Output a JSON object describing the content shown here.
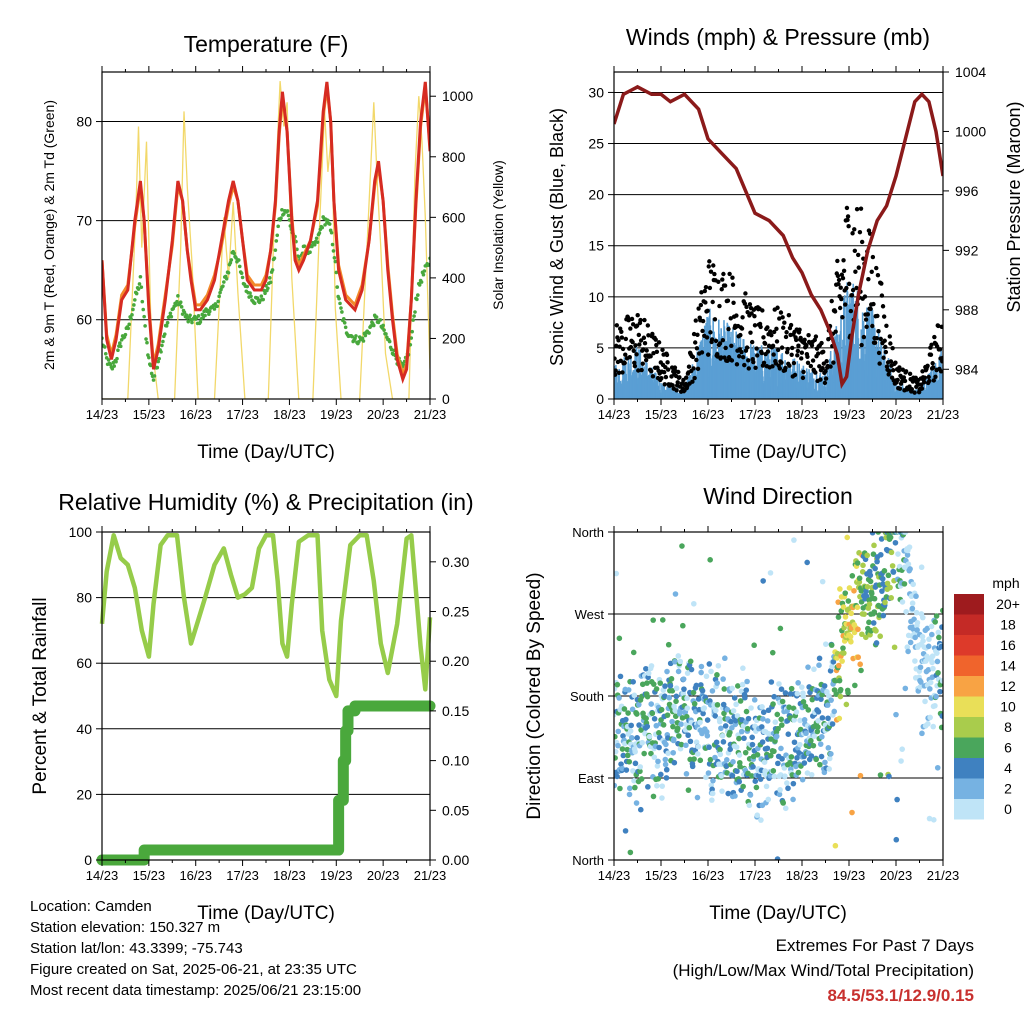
{
  "chart_data": [
    {
      "type": "line",
      "title": "Temperature (F)",
      "xlabel": "Time (Day/UTC)",
      "ylabel": "2m & 9m T (Red, Orange) & 2m Td (Green)",
      "y2label": "Solar Insolation (Yellow)",
      "x_ticks": [
        "14/23",
        "15/23",
        "16/23",
        "17/23",
        "18/23",
        "19/23",
        "20/23",
        "21/23"
      ],
      "xlim": [
        0,
        7
      ],
      "ylim": [
        52,
        85
      ],
      "y_ticks": [
        60,
        70,
        80
      ],
      "y2lim": [
        0,
        1080
      ],
      "y2_ticks": [
        0,
        200,
        400,
        600,
        800,
        1000
      ],
      "grid": "horizontal",
      "series": [
        {
          "key": "t2m",
          "color": "#d62b22",
          "x": [
            0,
            0.1,
            0.2,
            0.3,
            0.42,
            0.55,
            0.7,
            0.82,
            0.9,
            1.0,
            1.1,
            1.2,
            1.35,
            1.5,
            1.62,
            1.72,
            1.82,
            1.9,
            2.0,
            2.1,
            2.25,
            2.4,
            2.55,
            2.7,
            2.8,
            2.9,
            3.0,
            3.1,
            3.25,
            3.4,
            3.5,
            3.6,
            3.7,
            3.78,
            3.85,
            3.95,
            4.05,
            4.12,
            4.2,
            4.3,
            4.45,
            4.6,
            4.72,
            4.8,
            4.88,
            4.95,
            5.05,
            5.2,
            5.4,
            5.55,
            5.7,
            5.82,
            5.9,
            6.0,
            6.1,
            6.2,
            6.3,
            6.42,
            6.5,
            6.6,
            6.7,
            6.8,
            6.9,
            7.0
          ],
          "values": [
            66,
            58,
            56,
            58,
            62,
            63,
            70,
            74,
            70,
            61,
            55,
            57,
            62,
            68,
            74,
            72,
            67,
            64,
            61,
            61,
            62,
            64,
            68,
            72,
            74,
            72,
            68,
            64,
            63,
            63,
            64,
            67,
            72,
            79,
            83,
            79,
            70,
            66,
            65,
            66,
            68,
            72,
            81,
            84,
            80,
            72,
            65,
            62,
            61,
            63,
            68,
            74,
            76,
            72,
            65,
            60,
            56,
            54,
            55,
            62,
            72,
            80,
            84,
            77
          ]
        },
        {
          "key": "t9m",
          "color": "#f28a2a",
          "x": [
            0,
            0.1,
            0.2,
            0.3,
            0.42,
            0.55,
            0.7,
            0.82,
            0.9,
            1.0,
            1.1,
            1.2,
            1.35,
            1.5,
            1.62,
            1.72,
            1.82,
            1.9,
            2.0,
            2.1,
            2.25,
            2.4,
            2.55,
            2.7,
            2.8,
            2.9,
            3.0,
            3.1,
            3.25,
            3.4,
            3.5,
            3.6,
            3.7,
            3.78,
            3.85,
            3.95,
            4.05,
            4.12,
            4.2,
            4.3,
            4.45,
            4.6,
            4.72,
            4.8,
            4.88,
            4.95,
            5.05,
            5.2,
            5.4,
            5.55,
            5.7,
            5.82,
            5.9,
            6.0,
            6.1,
            6.2,
            6.3,
            6.42,
            6.5,
            6.6,
            6.7,
            6.8,
            6.9,
            7.0
          ],
          "values": [
            66,
            58.5,
            56.5,
            58.5,
            62.5,
            63.5,
            69.5,
            73.5,
            70,
            61.5,
            55.5,
            57.5,
            62.5,
            67.5,
            73.5,
            72,
            67,
            64.5,
            61.5,
            61.5,
            62.5,
            64.5,
            67.5,
            71.5,
            73.5,
            72,
            68,
            64.5,
            63.5,
            63.5,
            64.5,
            67,
            71.5,
            78.5,
            82.5,
            79,
            70.5,
            66.5,
            65.5,
            66.5,
            68,
            71.5,
            80.5,
            83.5,
            80,
            72,
            65.5,
            62.5,
            61.5,
            63.5,
            68,
            73.5,
            75.5,
            72,
            65.5,
            60.5,
            56.5,
            54.5,
            55.5,
            62,
            71.5,
            79.5,
            83.5,
            77.5
          ]
        },
        {
          "key": "td2m",
          "color": "#48a83c",
          "x": [
            0,
            0.1,
            0.2,
            0.3,
            0.42,
            0.55,
            0.7,
            0.82,
            0.9,
            1.0,
            1.1,
            1.2,
            1.35,
            1.5,
            1.62,
            1.72,
            1.82,
            1.9,
            2.0,
            2.1,
            2.25,
            2.4,
            2.55,
            2.7,
            2.8,
            2.9,
            3.0,
            3.1,
            3.25,
            3.4,
            3.5,
            3.6,
            3.7,
            3.78,
            3.85,
            3.95,
            4.05,
            4.12,
            4.2,
            4.3,
            4.45,
            4.6,
            4.72,
            4.8,
            4.88,
            4.95,
            5.05,
            5.2,
            5.4,
            5.55,
            5.7,
            5.82,
            5.9,
            6.0,
            6.1,
            6.2,
            6.3,
            6.42,
            6.5,
            6.6,
            6.7,
            6.8,
            6.9,
            7.0
          ],
          "values": [
            58,
            56,
            55,
            56,
            58,
            59,
            62,
            64,
            60,
            56,
            54,
            56,
            59,
            61,
            62,
            61,
            60,
            60,
            60,
            60,
            61,
            61,
            63,
            65,
            67,
            66,
            64,
            63,
            62,
            62,
            63,
            64,
            67,
            70,
            71,
            71,
            69,
            68,
            66,
            67,
            67,
            68,
            70,
            70,
            69,
            67,
            62,
            59,
            58,
            58,
            59,
            60,
            60,
            59,
            58,
            57,
            56,
            55,
            56,
            58,
            62,
            64,
            65,
            66
          ]
        },
        {
          "key": "solar",
          "color": "#f2d86a",
          "x": [
            0,
            0.55,
            0.72,
            0.78,
            0.85,
            0.95,
            1.05,
            1.2,
            1.55,
            1.68,
            1.75,
            1.82,
            1.92,
            2.05,
            2.4,
            2.5,
            2.6,
            2.7,
            2.8,
            2.9,
            3.05,
            3.55,
            3.7,
            3.8,
            3.88,
            3.95,
            4.05,
            4.2,
            4.5,
            4.65,
            4.75,
            4.82,
            4.9,
            4.98,
            5.1,
            5.5,
            5.7,
            5.8,
            5.88,
            5.95,
            6.05,
            6.2,
            6.55,
            6.68,
            6.76,
            6.83,
            6.9,
            7.0
          ],
          "values": [
            0,
            0,
            600,
            900,
            500,
            850,
            200,
            0,
            0,
            500,
            950,
            700,
            450,
            0,
            0,
            300,
            600,
            400,
            650,
            350,
            0,
            0,
            700,
            1050,
            900,
            980,
            400,
            0,
            0,
            600,
            950,
            750,
            880,
            300,
            0,
            0,
            650,
            980,
            700,
            500,
            150,
            0,
            0,
            750,
            1000,
            850,
            600,
            100
          ]
        }
      ]
    },
    {
      "type": "scatter",
      "title": "Winds (mph) & Pressure (mb)",
      "xlabel": "Time (Day/UTC)",
      "ylabel": "Sonic Wind & Gust (Blue, Black)",
      "y2label": "Station Pressure (Maroon)",
      "x_ticks": [
        "14/23",
        "15/23",
        "16/23",
        "17/23",
        "18/23",
        "19/23",
        "20/23",
        "21/23"
      ],
      "xlim": [
        0,
        7
      ],
      "ylim": [
        0,
        32
      ],
      "y_ticks": [
        0,
        5,
        10,
        15,
        20,
        25,
        30
      ],
      "y2lim": [
        982,
        1004
      ],
      "y2_ticks": [
        984,
        988,
        992,
        996,
        1000,
        1004
      ],
      "grid": "horizontal",
      "series": [
        {
          "key": "gust_env",
          "color": "#000000",
          "x": [
            0,
            0.5,
            1.0,
            1.5,
            2.0,
            2.5,
            3.0,
            3.5,
            4.0,
            4.5,
            5.0,
            5.5,
            6.0,
            6.5,
            7.0
          ],
          "values": [
            4,
            5,
            3,
            1,
            8,
            7,
            5,
            5,
            4,
            3,
            12,
            9,
            2,
            1,
            5
          ]
        },
        {
          "key": "wind_env",
          "color": "#5a9fd4",
          "x": [
            0,
            0.5,
            1.0,
            1.5,
            2.0,
            2.5,
            3.0,
            3.5,
            4.0,
            4.5,
            5.0,
            5.5,
            6.0,
            6.5,
            7.0
          ],
          "values": [
            2,
            3,
            1,
            0.5,
            5,
            4,
            3,
            3,
            2,
            1.5,
            7,
            5,
            1,
            0.5,
            3
          ]
        },
        {
          "key": "pressure",
          "color": "#8b1a1a",
          "x": [
            0,
            0.2,
            0.5,
            0.8,
            1.0,
            1.2,
            1.5,
            1.8,
            2.0,
            2.3,
            2.6,
            2.8,
            3.0,
            3.3,
            3.6,
            3.8,
            4.0,
            4.2,
            4.4,
            4.6,
            4.75,
            4.85,
            4.95,
            5.05,
            5.2,
            5.4,
            5.6,
            5.8,
            6.0,
            6.2,
            6.4,
            6.55,
            6.7,
            6.85,
            7.0
          ],
          "values": [
            1000.5,
            1002.5,
            1003,
            1002.5,
            1002.5,
            1002,
            1002.5,
            1001.5,
            999.5,
            998.5,
            997.5,
            996,
            994.5,
            994,
            993,
            991.5,
            990.5,
            989,
            988,
            986.5,
            985,
            983,
            983.5,
            986,
            989,
            992,
            994,
            995,
            997,
            999.5,
            1002,
            1002.5,
            1002,
            1000,
            997
          ]
        }
      ]
    },
    {
      "type": "line",
      "title": "Relative Humidity (%) & Precipitation (in)",
      "xlabel": "Time (Day/UTC)",
      "ylabel": "Percent & Total Rainfall",
      "x_ticks": [
        "14/23",
        "15/23",
        "16/23",
        "17/23",
        "18/23",
        "19/23",
        "20/23",
        "21/23"
      ],
      "xlim": [
        0,
        7
      ],
      "ylim": [
        0,
        100
      ],
      "y_ticks": [
        0,
        20,
        40,
        60,
        80,
        100
      ],
      "y2lim": [
        0,
        0.33
      ],
      "y2_ticks": [
        "0.00",
        "0.05",
        "0.10",
        "0.15",
        "0.20",
        "0.25",
        "0.30"
      ],
      "grid": "horizontal",
      "series": [
        {
          "key": "rh",
          "color": "#96cc4a",
          "x": [
            0,
            0.1,
            0.25,
            0.4,
            0.55,
            0.7,
            0.85,
            1.0,
            1.1,
            1.25,
            1.4,
            1.6,
            1.75,
            1.9,
            2.05,
            2.2,
            2.4,
            2.6,
            2.75,
            2.9,
            3.05,
            3.2,
            3.35,
            3.5,
            3.65,
            3.75,
            3.85,
            3.95,
            4.05,
            4.2,
            4.4,
            4.6,
            4.7,
            4.85,
            5.0,
            5.1,
            5.3,
            5.5,
            5.65,
            5.8,
            5.95,
            6.1,
            6.3,
            6.5,
            6.6,
            6.8,
            6.9,
            7.0
          ],
          "values": [
            72,
            88,
            99,
            92,
            90,
            83,
            70,
            62,
            78,
            96,
            99,
            99,
            80,
            66,
            73,
            80,
            90,
            95,
            87,
            80,
            81,
            83,
            95,
            99,
            99,
            85,
            66,
            62,
            78,
            97,
            99,
            99,
            70,
            55,
            50,
            73,
            96,
            99,
            99,
            85,
            66,
            57,
            72,
            98,
            99,
            65,
            52,
            74
          ]
        },
        {
          "key": "precip",
          "color": "#4aa83c",
          "x": [
            0,
            0.8,
            0.9,
            1.0,
            2.0,
            3.0,
            4.0,
            4.5,
            5.0,
            5.05,
            5.1,
            5.15,
            5.2,
            5.25,
            5.3,
            5.4,
            6.0,
            7.0
          ],
          "values": [
            0,
            0,
            0.01,
            0.01,
            0.01,
            0.01,
            0.01,
            0.01,
            0.01,
            0.06,
            0.06,
            0.1,
            0.13,
            0.15,
            0.15,
            0.155,
            0.155,
            0.155
          ]
        }
      ]
    },
    {
      "type": "scatter",
      "title": "Wind Direction",
      "xlabel": "Time (Day/UTC)",
      "ylabel": "Direction (Colored By Speed)",
      "x_ticks": [
        "14/23",
        "15/23",
        "16/23",
        "17/23",
        "18/23",
        "19/23",
        "20/23",
        "21/23"
      ],
      "xlim": [
        0,
        7
      ],
      "ylim": [
        0,
        360
      ],
      "y_ticks": [
        "North",
        "East",
        "South",
        "West",
        "North"
      ],
      "grid": "horizontal",
      "legend": {
        "title": "mph",
        "placement": "right",
        "labels": [
          "20+",
          "18",
          "16",
          "14",
          "12",
          "10",
          "8",
          "6",
          "4",
          "2",
          "0"
        ],
        "colors": [
          "#9e1b1e",
          "#c42a26",
          "#dd3a2a",
          "#f0642c",
          "#f8a344",
          "#e9df58",
          "#a9cc4c",
          "#4aa65c",
          "#3f81c0",
          "#76b2e2",
          "#bfe4f7"
        ]
      },
      "direction_trend": {
        "x": [
          0,
          0.5,
          1.0,
          1.2,
          1.6,
          2.0,
          2.5,
          3.0,
          3.5,
          4.0,
          4.3,
          4.6,
          4.8,
          5.0,
          5.2,
          5.5,
          5.8,
          6.0,
          6.2,
          6.5,
          6.8,
          7.0
        ],
        "values": [
          140,
          145,
          150,
          160,
          150,
          150,
          130,
          120,
          125,
          140,
          160,
          175,
          230,
          250,
          280,
          290,
          320,
          340,
          330,
          200,
          220,
          200
        ]
      }
    }
  ],
  "info": {
    "location": "Location: Camden",
    "elevation": "Station elevation: 150.327 m",
    "latlon": "Station lat/lon: 43.3399; -75.743",
    "created": "Figure created on Sat, 2025-06-21, at 23:35 UTC",
    "recent": "Most recent data timestamp: 2025/06/21 23:15:00"
  },
  "extremes": {
    "title": "Extremes For Past 7 Days",
    "subtitle": "(High/Low/Max Wind/Total Precipitation)",
    "values": "84.5/53.1/12.9/0.15"
  }
}
